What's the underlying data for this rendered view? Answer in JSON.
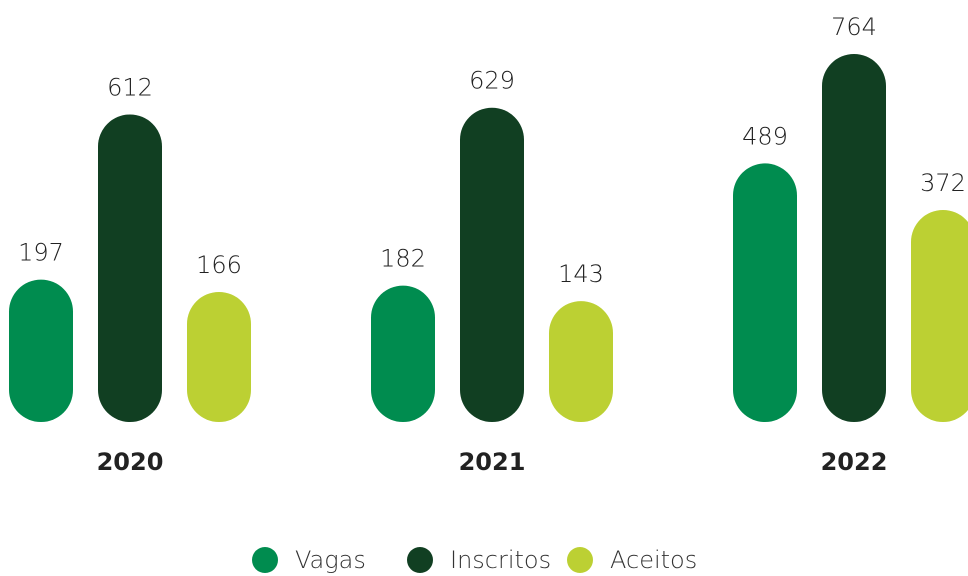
{
  "chart_data": {
    "type": "bar",
    "categories": [
      "2020",
      "2021",
      "2022"
    ],
    "series": [
      {
        "name": "Vagas",
        "color": "#008c4f",
        "values": [
          197,
          182,
          489
        ]
      },
      {
        "name": "Inscritos",
        "color": "#113f22",
        "values": [
          612,
          629,
          764
        ]
      },
      {
        "name": "Aceitos",
        "color": "#bcd033",
        "values": [
          166,
          143,
          372
        ]
      }
    ]
  }
}
